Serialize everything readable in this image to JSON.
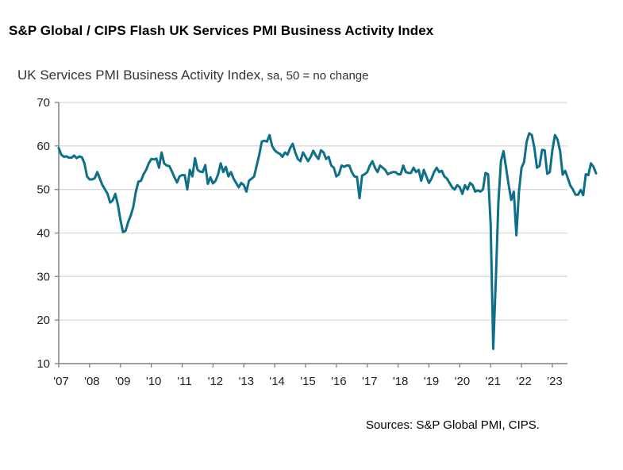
{
  "header": {
    "title": "S&P Global / CIPS Flash UK Services PMI Business Activity Index",
    "subtitle_main": "UK Services PMI Business Activity Index",
    "subtitle_suffix": ", sa, 50 = no change"
  },
  "footer": {
    "source": "Sources: S&P Global PMI, CIPS."
  },
  "chart_data": {
    "type": "line",
    "title": "UK Services PMI Business Activity Index, sa, 50 = no change",
    "xlabel": "",
    "ylabel": "",
    "ylim": [
      10,
      70
    ],
    "yticks": [
      10,
      20,
      30,
      40,
      50,
      60,
      70
    ],
    "xticks": [
      "'07",
      "'08",
      "'09",
      "'10",
      "'11",
      "'12",
      "'13",
      "'14",
      "'15",
      "'16",
      "'17",
      "'18",
      "'19",
      "'20",
      "'21",
      "'22",
      "'23"
    ],
    "x_start": "2007-01",
    "x_frequency": "monthly",
    "grid": "horizontal",
    "line_color": "#0e7088",
    "series": [
      {
        "name": "UK Services PMI Business Activity Index",
        "values": [
          59.5,
          58.0,
          57.5,
          57.6,
          57.3,
          57.3,
          57.8,
          57.2,
          57.6,
          57.4,
          56.0,
          53.0,
          52.3,
          52.3,
          52.6,
          54.0,
          52.5,
          51.0,
          50.0,
          49.0,
          47.0,
          47.5,
          49.0,
          46.5,
          43.0,
          40.2,
          40.5,
          42.5,
          44.0,
          46.0,
          49.5,
          51.8,
          52.0,
          53.5,
          54.5,
          56.0,
          57.0,
          56.9,
          57.1,
          55.0,
          58.5,
          56.0,
          55.5,
          55.4,
          54.2,
          52.8,
          51.6,
          53.0,
          53.3,
          53.3,
          50.0,
          54.5,
          53.0,
          57.2,
          54.5,
          54.1,
          54.0,
          55.6,
          51.3,
          52.8,
          51.4,
          52.0,
          53.5,
          56.0,
          54.0,
          55.2,
          53.0,
          54.0,
          52.5,
          51.5,
          50.5,
          51.5,
          51.0,
          49.5,
          52.0,
          52.5,
          53.0,
          55.5,
          58.0,
          61.0,
          61.2,
          61.0,
          62.5,
          60.0,
          59.0,
          58.5,
          58.2,
          57.5,
          58.5,
          58.0,
          59.5,
          60.5,
          58.5,
          57.0,
          56.5,
          58.5,
          57.5,
          56.5,
          57.5,
          58.9,
          57.8,
          57.0,
          59.0,
          58.5,
          57.0,
          57.5,
          55.5,
          55.0,
          53.0,
          53.5,
          55.5,
          55.2,
          55.5,
          55.5,
          54.0,
          53.0,
          52.9,
          48.0,
          53.2,
          53.5,
          54.0,
          55.5,
          56.5,
          55.0,
          54.0,
          55.5,
          55.0,
          54.5,
          53.5,
          53.8,
          54.0,
          54.0,
          53.5,
          53.5,
          55.5,
          54.0,
          53.8,
          53.8,
          55.0,
          54.0,
          54.5,
          52.0,
          54.5,
          53.0,
          51.5,
          52.5,
          54.0,
          55.0,
          54.0,
          54.3,
          53.0,
          52.5,
          51.5,
          50.5,
          50.0,
          51.0,
          50.5,
          49.0,
          51.0,
          50.0,
          51.5,
          51.0,
          49.5,
          49.8,
          49.5,
          50.0,
          53.8,
          53.5,
          42.0,
          13.4,
          29.0,
          47.1,
          56.5,
          58.8,
          55.0,
          51.0,
          47.6,
          49.5,
          39.5,
          49.5,
          55.0,
          56.3,
          61.0,
          62.9,
          62.5,
          59.6,
          55.0,
          55.4,
          59.1,
          59.0,
          53.6,
          54.0,
          59.0,
          62.5,
          61.5,
          58.9,
          53.4,
          54.3,
          52.6,
          50.9,
          50.0,
          48.8,
          48.8,
          49.9,
          48.7,
          53.5,
          53.3,
          56.0,
          55.2,
          53.7
        ]
      }
    ]
  }
}
